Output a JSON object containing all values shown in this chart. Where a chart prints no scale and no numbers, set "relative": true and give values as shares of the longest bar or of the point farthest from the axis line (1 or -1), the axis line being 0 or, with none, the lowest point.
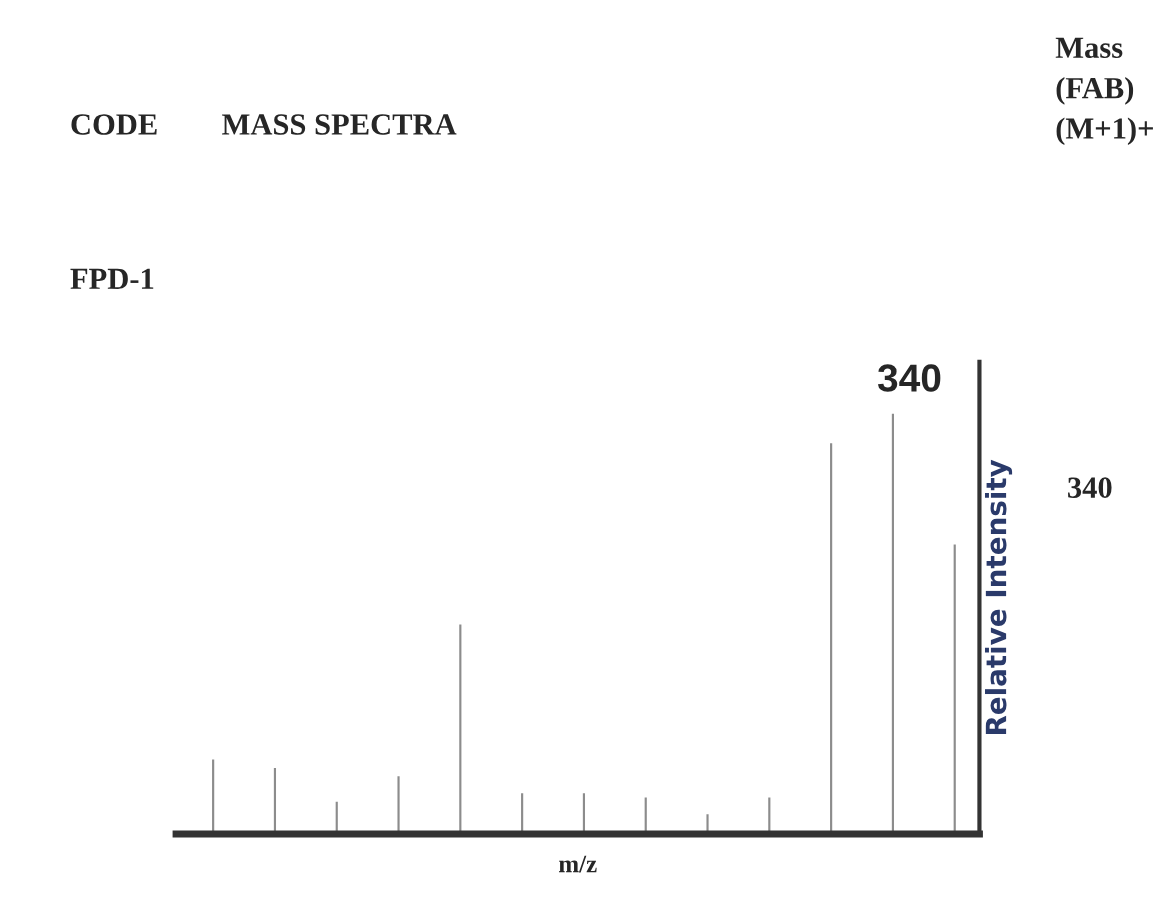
{
  "chart_data": {
    "type": "bar",
    "relative": true,
    "xlabel": "m/z",
    "y2label": "Relative Intensity",
    "categories": [
      null,
      null,
      null,
      null,
      null,
      null,
      null,
      null,
      null,
      null,
      null,
      null,
      null
    ],
    "values": [
      0.18,
      0.16,
      0.08,
      0.14,
      0.5,
      0.1,
      0.1,
      0.09,
      0.05,
      0.09,
      0.93,
      1,
      0.69
    ],
    "color": "#8c8c8c",
    "annotations": [
      "CODE",
      "MASS SPECTRA",
      "Mass\n(FAB)\n(M+1)+",
      "FPD-1",
      "340",
      "340"
    ]
  }
}
